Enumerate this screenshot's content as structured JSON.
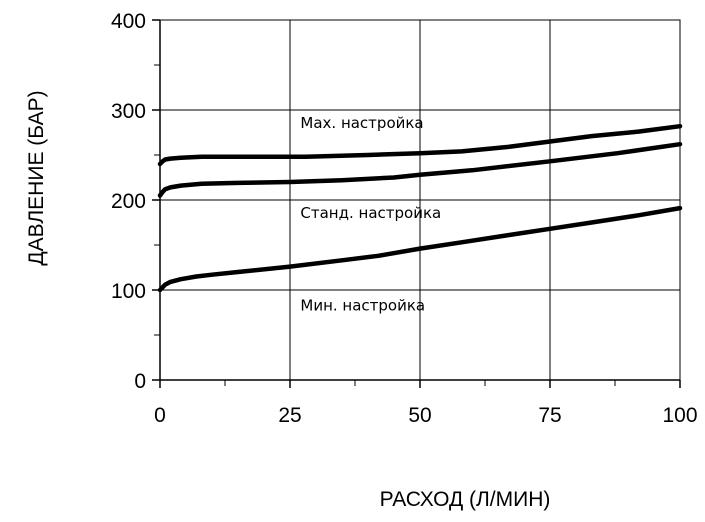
{
  "chart_data": {
    "type": "line",
    "xlabel": "РАСХОД (Л/МИН)",
    "ylabel": "ДАВЛЕНИЕ (БАР)",
    "xlim": [
      0,
      100
    ],
    "ylim": [
      0,
      400
    ],
    "xticks": [
      0,
      25,
      50,
      75,
      100
    ],
    "yticks": [
      0,
      100,
      200,
      300,
      400
    ],
    "xtick_labels": [
      "0",
      "25",
      "50",
      "75",
      "100"
    ],
    "ytick_labels": [
      "0",
      "100",
      "200",
      "300",
      "400"
    ],
    "grid": true,
    "series": [
      {
        "x": [
          0,
          0.5,
          1,
          2,
          4,
          8,
          15,
          28,
          40,
          50,
          58,
          67,
          75,
          83,
          92,
          100
        ],
        "y": [
          240,
          243,
          245,
          246,
          247,
          248,
          248,
          248,
          250,
          252,
          254,
          259,
          265,
          271,
          276,
          282
        ]
      },
      {
        "x": [
          0,
          0.5,
          1,
          2,
          4,
          8,
          15,
          25,
          35,
          45,
          50,
          60,
          75,
          88,
          100
        ],
        "y": [
          205,
          209,
          212,
          214,
          216,
          218,
          219,
          220,
          222,
          225,
          228,
          233,
          243,
          252,
          262
        ]
      },
      {
        "x": [
          0,
          0.5,
          1,
          2,
          4,
          7,
          10,
          15,
          25,
          35,
          42,
          50,
          58,
          67,
          75,
          83,
          92,
          100
        ],
        "y": [
          100,
          103,
          106,
          109,
          112,
          115,
          117,
          120,
          126,
          133,
          138,
          146,
          153,
          161,
          168,
          175,
          183,
          191
        ]
      }
    ],
    "annotations": [
      {
        "text": "Max. настройка",
        "x": 27,
        "y": 280
      },
      {
        "text": "Станд. настройка",
        "x": 27,
        "y": 180
      },
      {
        "text": "Мин. настройка",
        "x": 27,
        "y": 77
      }
    ]
  }
}
